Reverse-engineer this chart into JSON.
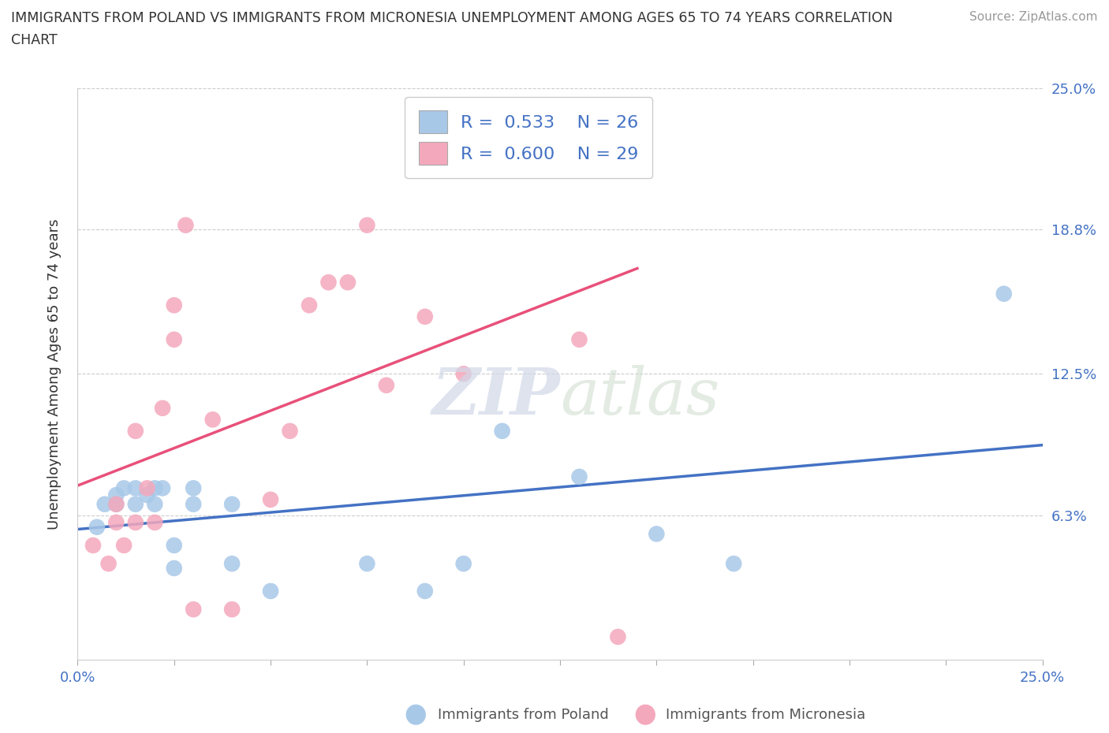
{
  "title_line1": "IMMIGRANTS FROM POLAND VS IMMIGRANTS FROM MICRONESIA UNEMPLOYMENT AMONG AGES 65 TO 74 YEARS CORRELATION",
  "title_line2": "CHART",
  "source": "Source: ZipAtlas.com",
  "ylabel": "Unemployment Among Ages 65 to 74 years",
  "xlim": [
    0.0,
    0.25
  ],
  "ylim": [
    0.0,
    0.25
  ],
  "ytick_labels": [
    "6.3%",
    "12.5%",
    "18.8%",
    "25.0%"
  ],
  "ytick_positions": [
    0.063,
    0.125,
    0.188,
    0.25
  ],
  "poland_color": "#a8c8e8",
  "micronesia_color": "#f4a8bc",
  "poland_line_color": "#4472c4",
  "micronesia_line_color": "#e8507a",
  "poland_R": "0.533",
  "poland_N": "26",
  "micronesia_R": "0.600",
  "micronesia_N": "29",
  "legend_color": "#4472c4",
  "poland_scatter_x": [
    0.005,
    0.007,
    0.01,
    0.01,
    0.012,
    0.015,
    0.015,
    0.018,
    0.02,
    0.02,
    0.022,
    0.025,
    0.025,
    0.03,
    0.03,
    0.04,
    0.04,
    0.05,
    0.075,
    0.09,
    0.1,
    0.11,
    0.13,
    0.15,
    0.17,
    0.24
  ],
  "poland_scatter_y": [
    0.058,
    0.068,
    0.068,
    0.072,
    0.075,
    0.068,
    0.075,
    0.072,
    0.068,
    0.075,
    0.075,
    0.04,
    0.05,
    0.068,
    0.075,
    0.068,
    0.042,
    0.03,
    0.042,
    0.03,
    0.042,
    0.1,
    0.08,
    0.055,
    0.042,
    0.16
  ],
  "micronesia_scatter_x": [
    0.004,
    0.008,
    0.01,
    0.01,
    0.012,
    0.015,
    0.015,
    0.018,
    0.02,
    0.022,
    0.025,
    0.025,
    0.028,
    0.03,
    0.035,
    0.04,
    0.05,
    0.055,
    0.06,
    0.065,
    0.07,
    0.075,
    0.08,
    0.09,
    0.1,
    0.1,
    0.105,
    0.13,
    0.14
  ],
  "micronesia_scatter_y": [
    0.05,
    0.042,
    0.06,
    0.068,
    0.05,
    0.06,
    0.1,
    0.075,
    0.06,
    0.11,
    0.14,
    0.155,
    0.19,
    0.022,
    0.105,
    0.022,
    0.07,
    0.1,
    0.155,
    0.165,
    0.165,
    0.19,
    0.12,
    0.15,
    0.125,
    0.215,
    0.235,
    0.14,
    0.01
  ],
  "poland_trendline_x": [
    0.0,
    0.25
  ],
  "micronesia_trendline_x": [
    0.0,
    0.145
  ]
}
